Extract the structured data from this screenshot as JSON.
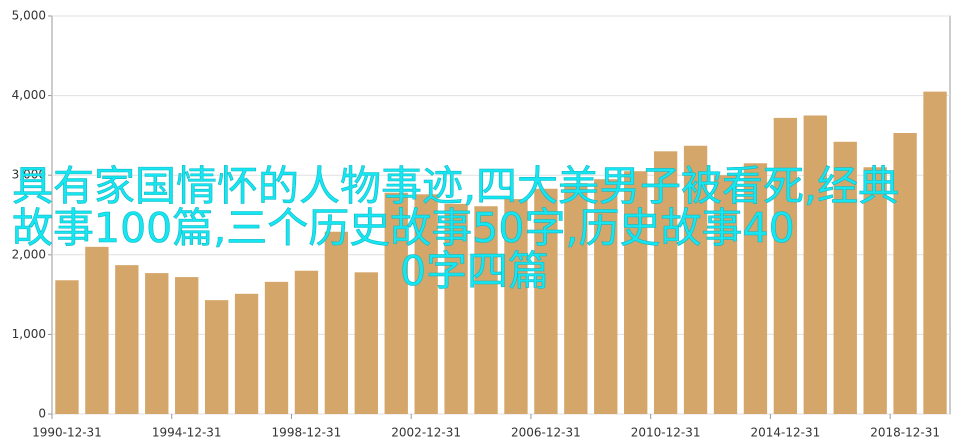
{
  "chart_data": {
    "type": "bar",
    "categories": [
      "1990-12-31",
      null,
      null,
      null,
      "1994-12-31",
      null,
      null,
      null,
      "1998-12-31",
      null,
      null,
      null,
      "2002-12-31",
      null,
      null,
      null,
      "2006-12-31",
      null,
      null,
      null,
      "2010-12-31",
      null,
      null,
      null,
      "2014-12-31",
      null,
      null,
      null,
      "2018-12-31",
      null
    ],
    "values": [
      1680,
      2100,
      1870,
      1770,
      1720,
      1430,
      1510,
      1660,
      1800,
      2290,
      1780,
      2780,
      2760,
      2640,
      2610,
      2700,
      2830,
      2900,
      2950,
      3050,
      3300,
      3370,
      3000,
      3150,
      3720,
      3750,
      3420,
      3100,
      3530,
      4050
    ],
    "color": "#d5a66a",
    "ylim": [
      0,
      5000
    ],
    "yticks": [
      0,
      {
        "value": 1000,
        "label": "1,000"
      },
      {
        "value": 2000,
        "label": "2,000"
      },
      {
        "value": 3000,
        "label": "3,000"
      },
      {
        "value": 4000,
        "label": "4,000"
      },
      {
        "value": 5000,
        "label": "5,000"
      }
    ],
    "grid": true
  },
  "overlay_text": [
    "具有家国情怀的人物事迹,四大美男子被看死,经典",
    "故事100篇,三个历史故事50字,历史故事40",
    "0字四篇"
  ]
}
